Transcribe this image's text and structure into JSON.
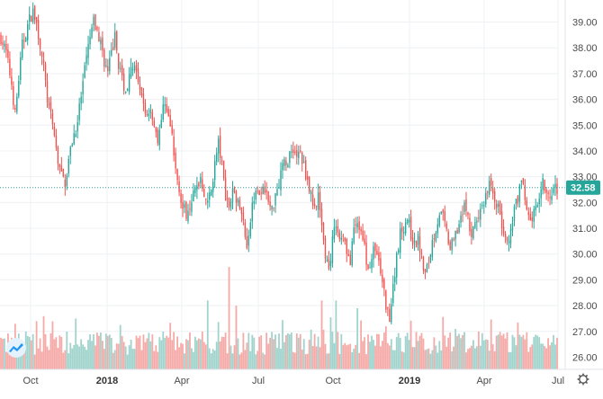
{
  "chart_data": {
    "type": "candlestick",
    "title": "",
    "ylim": [
      25.6,
      39.8
    ],
    "y_ticks": [
      "26.00",
      "27.00",
      "28.00",
      "29.00",
      "30.00",
      "31.00",
      "32.00",
      "33.00",
      "34.00",
      "35.00",
      "36.00",
      "37.00",
      "38.00",
      "39.00"
    ],
    "x_ticks": [
      {
        "label": "Oct",
        "bold": false
      },
      {
        "label": "2018",
        "bold": true
      },
      {
        "label": "Apr",
        "bold": false
      },
      {
        "label": "Jul",
        "bold": false
      },
      {
        "label": "Oct",
        "bold": false
      },
      {
        "label": "2019",
        "bold": true
      },
      {
        "label": "Apr",
        "bold": false
      },
      {
        "label": "Jul",
        "bold": false
      }
    ],
    "last_price": "32.58",
    "last_value": 32.58,
    "colors": {
      "up": "#26a69a",
      "down": "#ef5350",
      "vol_up": "#9fd3cc",
      "vol_down": "#f5aaa7",
      "price_line": "#26a69a"
    },
    "grid": true,
    "volume_shown": true,
    "price_path": [
      [
        0,
        38.4
      ],
      [
        3,
        37.8
      ],
      [
        6,
        36.6
      ],
      [
        8,
        35.4
      ],
      [
        10,
        36.8
      ],
      [
        12,
        38.1
      ],
      [
        14,
        38.6
      ],
      [
        16,
        39.1
      ],
      [
        18,
        39.4
      ],
      [
        20,
        38.9
      ],
      [
        22,
        38.1
      ],
      [
        24,
        37.2
      ],
      [
        26,
        36.0
      ],
      [
        28,
        35.3
      ],
      [
        30,
        34.6
      ],
      [
        32,
        33.6
      ],
      [
        34,
        33.0
      ],
      [
        36,
        32.8
      ],
      [
        38,
        33.6
      ],
      [
        40,
        34.4
      ],
      [
        42,
        34.9
      ],
      [
        44,
        35.6
      ],
      [
        46,
        36.6
      ],
      [
        48,
        37.6
      ],
      [
        50,
        38.4
      ],
      [
        52,
        39.0
      ],
      [
        54,
        38.6
      ],
      [
        56,
        38.2
      ],
      [
        58,
        37.5
      ],
      [
        60,
        37.0
      ],
      [
        62,
        37.8
      ],
      [
        64,
        38.4
      ],
      [
        66,
        37.4
      ],
      [
        68,
        36.8
      ],
      [
        70,
        36.3
      ],
      [
        72,
        36.8
      ],
      [
        74,
        37.4
      ],
      [
        76,
        36.9
      ],
      [
        78,
        36.2
      ],
      [
        80,
        35.8
      ],
      [
        82,
        35.4
      ],
      [
        84,
        35.7
      ],
      [
        86,
        35.0
      ],
      [
        88,
        34.5
      ],
      [
        90,
        35.2
      ],
      [
        92,
        36.0
      ],
      [
        94,
        35.3
      ],
      [
        96,
        34.5
      ],
      [
        98,
        33.2
      ],
      [
        100,
        32.6
      ],
      [
        102,
        31.8
      ],
      [
        104,
        31.6
      ],
      [
        106,
        32.0
      ],
      [
        108,
        32.3
      ],
      [
        110,
        32.6
      ],
      [
        112,
        33.0
      ],
      [
        114,
        32.4
      ],
      [
        116,
        31.9
      ],
      [
        118,
        32.5
      ],
      [
        120,
        33.5
      ],
      [
        122,
        34.3
      ],
      [
        124,
        33.4
      ],
      [
        126,
        32.3
      ],
      [
        128,
        31.9
      ],
      [
        130,
        32.6
      ],
      [
        132,
        32.1
      ],
      [
        134,
        31.8
      ],
      [
        136,
        31.2
      ],
      [
        138,
        30.4
      ],
      [
        140,
        31.4
      ],
      [
        142,
        32.3
      ],
      [
        144,
        32.7
      ],
      [
        146,
        32.2
      ],
      [
        148,
        32.6
      ],
      [
        150,
        32.0
      ],
      [
        152,
        31.7
      ],
      [
        154,
        32.4
      ],
      [
        156,
        32.8
      ],
      [
        158,
        33.6
      ],
      [
        160,
        33.4
      ],
      [
        162,
        33.9
      ],
      [
        164,
        34.1
      ],
      [
        166,
        33.8
      ],
      [
        168,
        33.9
      ],
      [
        170,
        33.4
      ],
      [
        172,
        32.9
      ],
      [
        174,
        32.2
      ],
      [
        176,
        31.8
      ],
      [
        178,
        32.4
      ],
      [
        180,
        30.9
      ],
      [
        182,
        30.0
      ],
      [
        184,
        29.4
      ],
      [
        186,
        30.5
      ],
      [
        188,
        31.2
      ],
      [
        190,
        30.6
      ],
      [
        192,
        30.8
      ],
      [
        194,
        30.2
      ],
      [
        196,
        29.6
      ],
      [
        198,
        30.9
      ],
      [
        200,
        31.2
      ],
      [
        202,
        30.8
      ],
      [
        204,
        30.2
      ],
      [
        206,
        29.4
      ],
      [
        208,
        29.9
      ],
      [
        210,
        30.3
      ],
      [
        212,
        29.6
      ],
      [
        214,
        28.9
      ],
      [
        216,
        28.0
      ],
      [
        218,
        27.6
      ],
      [
        220,
        28.7
      ],
      [
        222,
        30.0
      ],
      [
        224,
        30.8
      ],
      [
        226,
        31.1
      ],
      [
        228,
        31.4
      ],
      [
        230,
        30.8
      ],
      [
        232,
        30.3
      ],
      [
        234,
        30.6
      ],
      [
        236,
        29.8
      ],
      [
        238,
        29.2
      ],
      [
        240,
        29.7
      ],
      [
        242,
        30.5
      ],
      [
        244,
        31.0
      ],
      [
        246,
        31.6
      ],
      [
        248,
        31.4
      ],
      [
        250,
        30.8
      ],
      [
        252,
        30.2
      ],
      [
        254,
        30.5
      ],
      [
        256,
        31.0
      ],
      [
        258,
        31.6
      ],
      [
        260,
        31.9
      ],
      [
        262,
        31.3
      ],
      [
        264,
        30.7
      ],
      [
        266,
        31.1
      ],
      [
        268,
        31.4
      ],
      [
        270,
        31.8
      ],
      [
        272,
        32.3
      ],
      [
        274,
        32.7
      ],
      [
        276,
        32.4
      ],
      [
        278,
        32.0
      ],
      [
        280,
        31.5
      ],
      [
        282,
        30.8
      ],
      [
        284,
        30.3
      ],
      [
        286,
        30.8
      ],
      [
        288,
        31.6
      ],
      [
        290,
        32.2
      ],
      [
        292,
        32.7
      ],
      [
        294,
        32.3
      ],
      [
        296,
        31.5
      ],
      [
        298,
        31.3
      ],
      [
        300,
        31.8
      ],
      [
        302,
        32.4
      ],
      [
        304,
        32.9
      ],
      [
        306,
        32.5
      ],
      [
        308,
        32.2
      ],
      [
        310,
        32.4
      ],
      [
        312,
        32.58
      ]
    ],
    "volume_spikes": [
      [
        20,
        27.4
      ],
      [
        42,
        27.5
      ],
      [
        116,
        28.2
      ],
      [
        128,
        29.5
      ],
      [
        132,
        28.0
      ],
      [
        180,
        28.2
      ],
      [
        188,
        28.2
      ],
      [
        200,
        27.9
      ],
      [
        216,
        27.2
      ],
      [
        255,
        27.1
      ],
      [
        268,
        27.0
      ]
    ]
  }
}
